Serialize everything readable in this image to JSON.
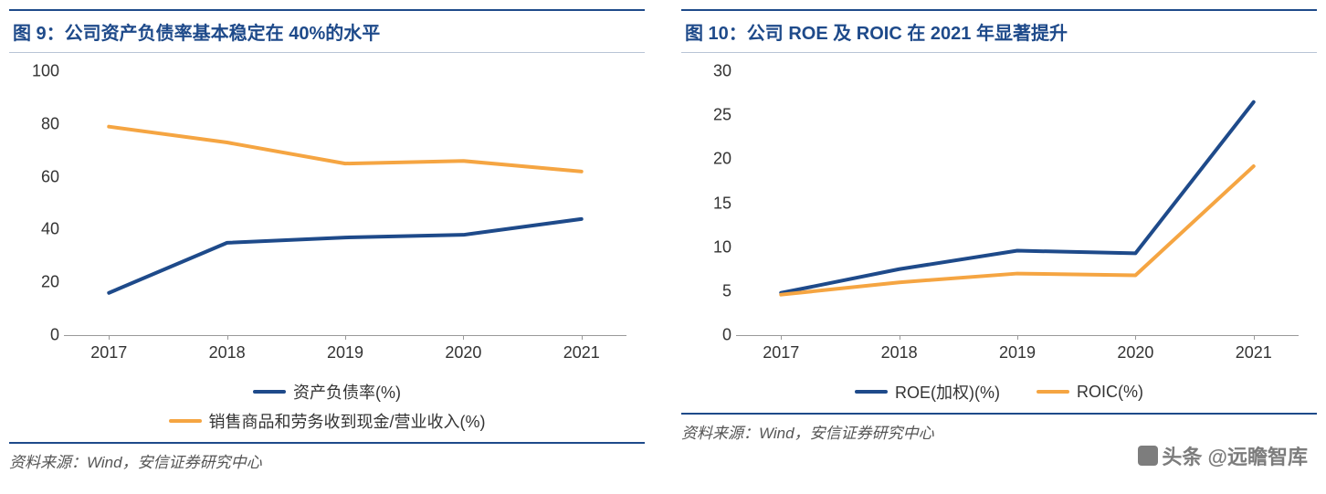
{
  "watermark": "头条 @远瞻智库",
  "left": {
    "title": "图 9：公司资产负债率基本稳定在 40%的水平",
    "source": "资料来源：Wind，安信证券研究中心",
    "chart": {
      "type": "line",
      "categories": [
        "2017",
        "2018",
        "2019",
        "2020",
        "2021"
      ],
      "ylim": [
        0,
        100
      ],
      "ytick_step": 20,
      "background_color": "#ffffff",
      "axis_color": "#999999",
      "tick_fontsize": 18,
      "series": [
        {
          "name": "资产负债率(%)",
          "color": "#1e4a8a",
          "line_width": 4,
          "values": [
            16,
            35,
            37,
            38,
            44
          ]
        },
        {
          "name": "销售商品和劳务收到现金/营业收入(%)",
          "color": "#f5a542",
          "line_width": 4,
          "values": [
            79,
            73,
            65,
            66,
            62
          ]
        }
      ]
    }
  },
  "right": {
    "title": "图 10：公司 ROE 及 ROIC 在 2021 年显著提升",
    "source": "资料来源：Wind，安信证券研究中心",
    "chart": {
      "type": "line",
      "categories": [
        "2017",
        "2018",
        "2019",
        "2020",
        "2021"
      ],
      "ylim": [
        0,
        30
      ],
      "ytick_step": 5,
      "background_color": "#ffffff",
      "axis_color": "#999999",
      "tick_fontsize": 18,
      "series": [
        {
          "name": "ROE(加权)(%)",
          "color": "#1e4a8a",
          "line_width": 4,
          "values": [
            4.8,
            7.5,
            9.6,
            9.3,
            26.5
          ]
        },
        {
          "name": "ROIC(%)",
          "color": "#f5a542",
          "line_width": 4,
          "values": [
            4.6,
            6.0,
            7.0,
            6.8,
            19.2
          ]
        }
      ]
    }
  }
}
